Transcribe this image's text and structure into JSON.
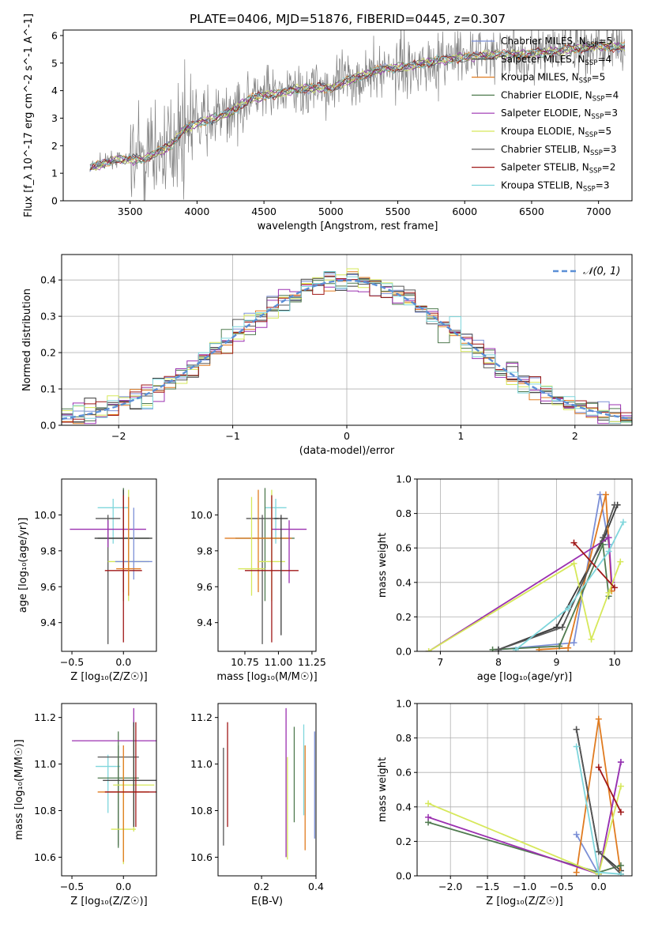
{
  "figure_title": "PLATE=0406, MJD=51876, FIBERID=0445, z=0.307",
  "models": [
    {
      "name": "Chabrier MILES",
      "nssp": "5",
      "color": "#7b8fd6"
    },
    {
      "name": "Salpeter MILES",
      "nssp": "4",
      "color": "#3a3a3a"
    },
    {
      "name": "Kroupa MILES",
      "nssp": "5",
      "color": "#e07b20"
    },
    {
      "name": "Chabrier ELODIE",
      "nssp": "4",
      "color": "#4f7a4f"
    },
    {
      "name": "Salpeter ELODIE",
      "nssp": "3",
      "color": "#9b30b0"
    },
    {
      "name": "Kroupa ELODIE",
      "nssp": "5",
      "color": "#d6e85a"
    },
    {
      "name": "Chabrier STELIB",
      "nssp": "3",
      "color": "#555555"
    },
    {
      "name": "Salpeter STELIB",
      "nssp": "2",
      "color": "#a01818"
    },
    {
      "name": "Kroupa STELIB",
      "nssp": "3",
      "color": "#7fd6dc"
    }
  ],
  "legend_suffix": "N",
  "legend_sub": "SSP",
  "chart_data": [
    {
      "id": "spectrum",
      "type": "line",
      "xlabel": "wavelength [Angstrom, rest frame]",
      "ylabel": "Flux [f_λ 10^-17 erg cm^-2 s^-1 A^-1]",
      "xlim": [
        3000,
        7250
      ],
      "ylim": [
        0,
        6.2
      ],
      "xticks": [
        "3500",
        "4000",
        "4500",
        "5000",
        "5500",
        "6000",
        "6500",
        "7000"
      ],
      "yticks": [
        "0",
        "1",
        "2",
        "3",
        "4",
        "5",
        "6"
      ],
      "data_color": "#808080",
      "model_points": [
        [
          3200,
          1.2
        ],
        [
          3400,
          1.5
        ],
        [
          3600,
          1.5
        ],
        [
          3800,
          2.0
        ],
        [
          3900,
          2.6
        ],
        [
          4000,
          2.8
        ],
        [
          4200,
          3.1
        ],
        [
          4400,
          3.7
        ],
        [
          4600,
          3.9
        ],
        [
          4800,
          4.1
        ],
        [
          5000,
          4.1
        ],
        [
          5200,
          4.5
        ],
        [
          5400,
          4.8
        ],
        [
          5600,
          4.9
        ],
        [
          5800,
          5.1
        ],
        [
          6000,
          5.2
        ],
        [
          6200,
          5.3
        ],
        [
          6400,
          5.3
        ],
        [
          6600,
          5.4
        ],
        [
          6800,
          5.5
        ],
        [
          7000,
          5.6
        ],
        [
          7200,
          5.6
        ]
      ]
    },
    {
      "id": "residuals",
      "type": "line",
      "xlabel": "(data-model)/error",
      "ylabel": "Normed distribution",
      "xlim": [
        -2.5,
        2.5
      ],
      "ylim": [
        0,
        0.47
      ],
      "xticks": [
        "−2",
        "−1",
        "0",
        "1",
        "2"
      ],
      "yticks": [
        "0.0",
        "0.1",
        "0.2",
        "0.3",
        "0.4"
      ],
      "reference_label": "𝒩(0, 1)",
      "reference_color": "#5b8fd6"
    },
    {
      "id": "age_vs_Z",
      "type": "scatter",
      "xlabel": "Z [log₁₀(Z/Z☉)]",
      "ylabel": "age  [log₁₀(age/yr)]",
      "xlim": [
        -0.6,
        0.32
      ],
      "ylim": [
        9.24,
        10.2
      ],
      "xticks": [
        "−0.5",
        "0.0"
      ],
      "yticks": [
        "9.4",
        "9.6",
        "9.8",
        "10.0"
      ],
      "points": [
        {
          "x": -0.1,
          "y": 10.04,
          "xerr": 0.15,
          "yerr": [
            0.2,
            0.05
          ],
          "c": 8
        },
        {
          "x": -0.15,
          "y": 9.98,
          "xerr": 0.12,
          "yerr": [
            0.7,
            0.02
          ],
          "c": 6
        },
        {
          "x": 0.0,
          "y": 9.87,
          "xerr": 0.25,
          "yerr": [
            0.35,
            0.28
          ],
          "c": 3
        },
        {
          "x": 0.0,
          "y": 9.87,
          "xerr": 0.28,
          "yerr": [
            0.3,
            0.27
          ],
          "c": 1
        },
        {
          "x": -0.15,
          "y": 9.92,
          "xerr": 0.37,
          "yerr": [
            0.1,
            0.05
          ],
          "c": 4
        },
        {
          "x": 0.05,
          "y": 9.74,
          "xerr": 0.2,
          "yerr": [
            0.22,
            0.4
          ],
          "c": 5
        },
        {
          "x": 0.1,
          "y": 9.74,
          "xerr": 0.18,
          "yerr": [
            0.1,
            0.3
          ],
          "c": 0
        },
        {
          "x": 0.0,
          "y": 9.69,
          "xerr": 0.18,
          "yerr": [
            0.4,
            0.42
          ],
          "c": 7
        },
        {
          "x": 0.05,
          "y": 9.7,
          "xerr": 0.12,
          "yerr": [
            0.15,
            0.4
          ],
          "c": 2
        }
      ]
    },
    {
      "id": "age_vs_mass",
      "type": "scatter",
      "xlabel": "mass [log₁₀(M/M☉)]",
      "ylabel": "",
      "xlim": [
        10.55,
        11.28
      ],
      "ylim": [
        9.24,
        10.2
      ],
      "xticks": [
        "10.75",
        "11.00",
        "11.25"
      ],
      "yticks": [
        "9.4",
        "9.6",
        "9.8",
        "10.0"
      ],
      "points": [
        {
          "x": 10.98,
          "y": 10.04,
          "xerr": 0.08,
          "yerr": [
            0.2,
            0.05
          ],
          "c": 8
        },
        {
          "x": 10.88,
          "y": 9.98,
          "xerr": 0.12,
          "yerr": [
            0.7,
            0.02
          ],
          "c": 6
        },
        {
          "x": 10.9,
          "y": 9.87,
          "xerr": 0.22,
          "yerr": [
            0.35,
            0.28
          ],
          "c": 3
        },
        {
          "x": 10.85,
          "y": 9.87,
          "xerr": 0.25,
          "yerr": [
            0.3,
            0.27
          ],
          "c": 2
        },
        {
          "x": 11.08,
          "y": 9.92,
          "xerr": 0.13,
          "yerr": [
            0.3,
            0.05
          ],
          "c": 4
        },
        {
          "x": 10.95,
          "y": 9.74,
          "xerr": 0.1,
          "yerr": [
            0.22,
            0.4
          ],
          "c": 5
        },
        {
          "x": 10.8,
          "y": 9.7,
          "xerr": 0.1,
          "yerr": [
            0.15,
            0.4
          ],
          "c": 5
        },
        {
          "x": 10.95,
          "y": 9.69,
          "xerr": 0.2,
          "yerr": [
            0.4,
            0.42
          ],
          "c": 7
        },
        {
          "x": 11.02,
          "y": 9.98,
          "xerr": 0.05,
          "yerr": [
            0.65,
            0.02
          ],
          "c": 1
        }
      ]
    },
    {
      "id": "weight_vs_age",
      "type": "line",
      "xlabel": "age  [log₁₀(age/yr)]",
      "ylabel": "mass weight",
      "xlim": [
        6.6,
        10.3
      ],
      "ylim": [
        0,
        1.0
      ],
      "xticks": [
        "7",
        "8",
        "9",
        "10"
      ],
      "yticks": [
        "0.0",
        "0.2",
        "0.4",
        "0.6",
        "0.8",
        "1.0"
      ],
      "series": [
        {
          "c": 0,
          "points": [
            [
              8.0,
              0.01
            ],
            [
              9.3,
              0.05
            ],
            [
              9.75,
              0.91
            ],
            [
              9.9,
              0.62
            ]
          ]
        },
        {
          "c": 1,
          "points": [
            [
              8.0,
              0.01
            ],
            [
              9.0,
              0.14
            ],
            [
              9.8,
              0.64
            ],
            [
              10.05,
              0.85
            ]
          ]
        },
        {
          "c": 2,
          "points": [
            [
              8.7,
              0.01
            ],
            [
              9.2,
              0.02
            ],
            [
              9.85,
              0.91
            ],
            [
              9.95,
              0.35
            ]
          ]
        },
        {
          "c": 3,
          "points": [
            [
              7.9,
              0.01
            ],
            [
              9.05,
              0.03
            ],
            [
              9.8,
              0.62
            ],
            [
              9.9,
              0.32
            ]
          ]
        },
        {
          "c": 4,
          "points": [
            [
              6.8,
              0.0
            ],
            [
              9.9,
              0.66
            ],
            [
              9.95,
              0.4
            ]
          ]
        },
        {
          "c": 5,
          "points": [
            [
              6.8,
              0.0
            ],
            [
              9.3,
              0.51
            ],
            [
              9.6,
              0.07
            ],
            [
              9.9,
              0.34
            ],
            [
              10.1,
              0.52
            ]
          ]
        },
        {
          "c": 6,
          "points": [
            [
              8.0,
              0.01
            ],
            [
              9.1,
              0.14
            ],
            [
              9.8,
              0.66
            ],
            [
              10.0,
              0.85
            ]
          ]
        },
        {
          "c": 7,
          "points": [
            [
              9.3,
              0.63
            ],
            [
              10.0,
              0.37
            ]
          ]
        },
        {
          "c": 8,
          "points": [
            [
              8.3,
              0.01
            ],
            [
              9.2,
              0.25
            ],
            [
              9.9,
              0.58
            ],
            [
              10.15,
              0.75
            ]
          ]
        }
      ]
    },
    {
      "id": "mass_vs_Z",
      "type": "scatter",
      "xlabel": "Z [log₁₀(Z/Z☉)]",
      "ylabel": "mass [log₁₀(M/M☉)]",
      "xlim": [
        -0.6,
        0.32
      ],
      "ylim": [
        10.52,
        11.26
      ],
      "xticks": [
        "−0.5",
        "0.0"
      ],
      "yticks": [
        "10.6",
        "10.8",
        "11.0",
        "11.2"
      ],
      "points": [
        {
          "x": -0.15,
          "y": 10.99,
          "xerr": 0.12,
          "yerr": [
            0.2,
            0.05
          ],
          "c": 8
        },
        {
          "x": -0.05,
          "y": 11.03,
          "xerr": 0.2,
          "yerr": [
            0.38,
            0.05
          ],
          "c": 6
        },
        {
          "x": -0.05,
          "y": 10.94,
          "xerr": 0.2,
          "yerr": [
            0.3,
            0.2
          ],
          "c": 3
        },
        {
          "x": 0.1,
          "y": 11.1,
          "xerr": 0.6,
          "yerr": [
            0.3,
            0.14
          ],
          "c": 4
        },
        {
          "x": 0.1,
          "y": 10.91,
          "xerr": 0.2,
          "yerr": [
            0.2,
            0.25
          ],
          "c": 5
        },
        {
          "x": 0.0,
          "y": 10.72,
          "xerr": 0.12,
          "yerr": [
            0.15,
            0.3
          ],
          "c": 5
        },
        {
          "x": 0.0,
          "y": 10.88,
          "xerr": 0.25,
          "yerr": [
            0.3,
            0.2
          ],
          "c": 2
        },
        {
          "x": 0.1,
          "y": 10.93,
          "xerr": 0.3,
          "yerr": [
            0.2,
            0.25
          ],
          "c": 1
        },
        {
          "x": 0.12,
          "y": 10.88,
          "xerr": 0.3,
          "yerr": [
            0.15,
            0.3
          ],
          "c": 7
        }
      ]
    },
    {
      "id": "mass_vs_ebv",
      "type": "scatter",
      "xlabel": "E(B-V)",
      "ylabel": "",
      "xlim": [
        0.04,
        0.4
      ],
      "ylim": [
        10.52,
        11.26
      ],
      "xticks": [
        "0.2",
        "0.4"
      ],
      "yticks": [
        "10.6",
        "10.8",
        "11.0",
        "11.2"
      ],
      "points": [
        {
          "x": 0.06,
          "y": 10.86,
          "yerr": [
            0.21,
            0.21
          ],
          "c": 6
        },
        {
          "x": 0.075,
          "y": 10.95,
          "yerr": [
            0.22,
            0.23
          ],
          "c": 7
        },
        {
          "x": 0.29,
          "y": 10.85,
          "yerr": [
            0.25,
            0.39
          ],
          "c": 4
        },
        {
          "x": 0.295,
          "y": 10.8,
          "yerr": [
            0.21,
            0.23
          ],
          "c": 5
        },
        {
          "x": 0.32,
          "y": 10.95,
          "yerr": [
            0.2,
            0.21
          ],
          "c": 3
        },
        {
          "x": 0.355,
          "y": 11.0,
          "yerr": [
            0.22,
            0.17
          ],
          "c": 8
        },
        {
          "x": 0.36,
          "y": 10.85,
          "yerr": [
            0.22,
            0.23
          ],
          "c": 2
        },
        {
          "x": 0.395,
          "y": 10.9,
          "yerr": [
            0.22,
            0.24
          ],
          "c": 0
        }
      ]
    },
    {
      "id": "weight_vs_Z",
      "type": "line",
      "xlabel": "Z [log₁₀(Z/Z☉)]",
      "ylabel": "mass weight",
      "xlim": [
        -2.45,
        0.45
      ],
      "ylim": [
        0,
        1.0
      ],
      "xticks": [
        "−2.0",
        "−1.5",
        "−1.0",
        "−0.5",
        "0.0"
      ],
      "yticks": [
        "0.0",
        "0.2",
        "0.4",
        "0.6",
        "0.8",
        "1.0"
      ],
      "series": [
        {
          "c": 0,
          "points": [
            [
              -0.3,
              0.24
            ],
            [
              0.0,
              0.01
            ],
            [
              0.3,
              0.66
            ]
          ]
        },
        {
          "c": 1,
          "points": [
            [
              -0.3,
              0.85
            ],
            [
              0.0,
              0.14
            ],
            [
              0.3,
              0.03
            ]
          ]
        },
        {
          "c": 2,
          "points": [
            [
              -0.3,
              0.02
            ],
            [
              0.0,
              0.91
            ],
            [
              0.3,
              0.01
            ]
          ]
        },
        {
          "c": 3,
          "points": [
            [
              -2.3,
              0.31
            ],
            [
              0.0,
              0.02
            ],
            [
              0.3,
              0.06
            ]
          ]
        },
        {
          "c": 4,
          "points": [
            [
              -2.3,
              0.34
            ],
            [
              0.0,
              0.01
            ],
            [
              0.3,
              0.66
            ]
          ]
        },
        {
          "c": 5,
          "points": [
            [
              -2.3,
              0.42
            ],
            [
              0.0,
              0.01
            ],
            [
              0.3,
              0.52
            ]
          ]
        },
        {
          "c": 6,
          "points": [
            [
              -0.3,
              0.85
            ],
            [
              0.0,
              0.14
            ],
            [
              0.3,
              0.01
            ]
          ]
        },
        {
          "c": 7,
          "points": [
            [
              0.0,
              0.63
            ],
            [
              0.3,
              0.37
            ]
          ]
        },
        {
          "c": 8,
          "points": [
            [
              -0.3,
              0.75
            ],
            [
              0.0,
              0.02
            ],
            [
              0.3,
              0.01
            ]
          ]
        }
      ]
    }
  ]
}
